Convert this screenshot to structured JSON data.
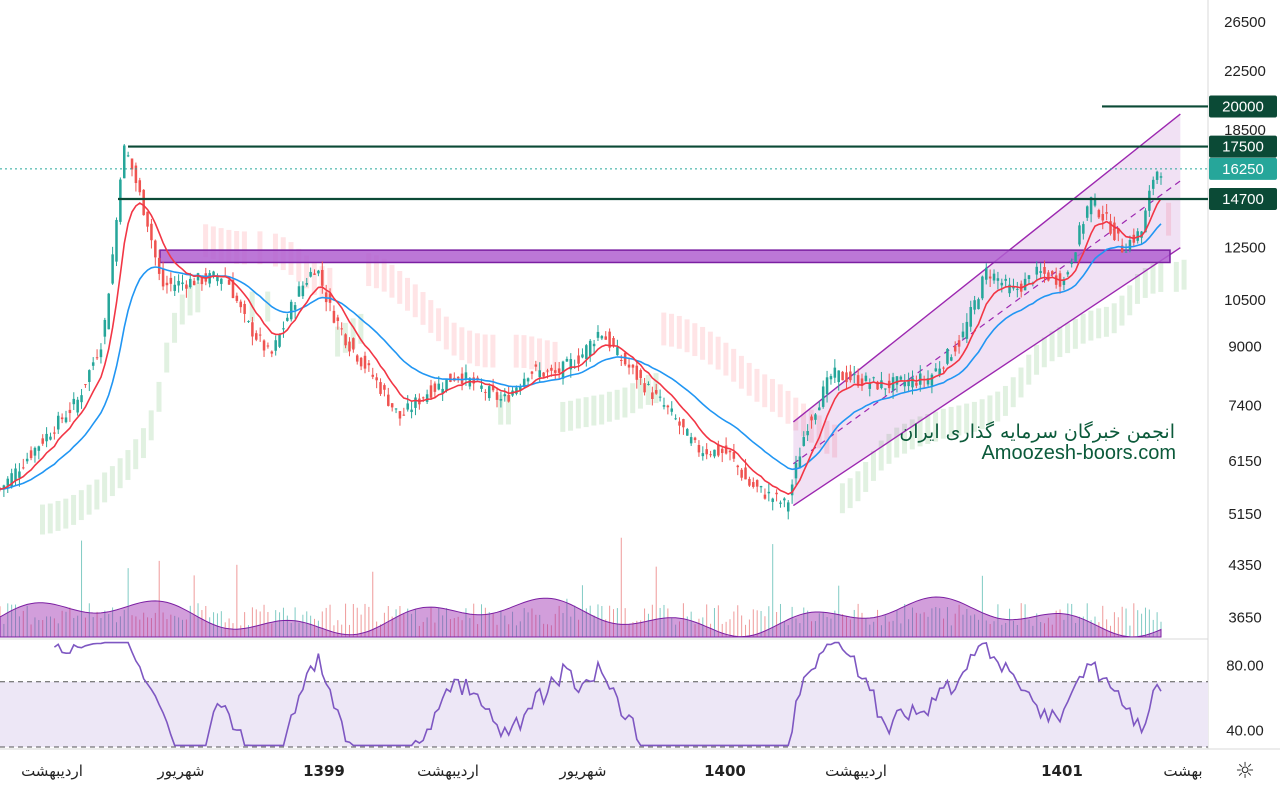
{
  "chart_data": {
    "type": "candlestick",
    "price_axis": {
      "scale": "log",
      "ylim": [
        3400,
        28500
      ],
      "ticks": [
        26500,
        22500,
        18500,
        14700,
        12500,
        10500,
        9000,
        7400,
        6150,
        5150,
        4350,
        3650
      ]
    },
    "x_axis_labels": [
      {
        "text": "اردیبهشت",
        "bold": false
      },
      {
        "text": "شهریور",
        "bold": false
      },
      {
        "text": "1399",
        "bold": true
      },
      {
        "text": "اردیبهشت",
        "bold": false
      },
      {
        "text": "شهریور",
        "bold": false
      },
      {
        "text": "1400",
        "bold": true
      },
      {
        "text": "اردیبهشت",
        "bold": false
      },
      {
        "text": "1401",
        "bold": true
      },
      {
        "text": "بهشت",
        "bold": false
      }
    ],
    "price_levels": [
      {
        "value": 20000,
        "label": "20000"
      },
      {
        "value": 17500,
        "label": "17500"
      },
      {
        "value": 14700,
        "label": "14700"
      }
    ],
    "current_price": {
      "value": 16250,
      "label": "16250"
    },
    "support_zone": [
      11900,
      12400
    ],
    "rising_channel": {
      "lower_line": [
        [
          0.615,
          5300
        ],
        [
          0.915,
          12500
        ]
      ],
      "upper_line": [
        [
          0.615,
          7000
        ],
        [
          0.915,
          19500
        ]
      ]
    },
    "close_path": [
      [
        0.0,
        5600
      ],
      [
        0.03,
        6500
      ],
      [
        0.06,
        7500
      ],
      [
        0.08,
        9300
      ],
      [
        0.09,
        13500
      ],
      [
        0.095,
        17500
      ],
      [
        0.1,
        16800
      ],
      [
        0.115,
        13500
      ],
      [
        0.125,
        11000
      ],
      [
        0.15,
        11200
      ],
      [
        0.175,
        11400
      ],
      [
        0.19,
        9800
      ],
      [
        0.21,
        8700
      ],
      [
        0.23,
        10700
      ],
      [
        0.245,
        11800
      ],
      [
        0.255,
        10300
      ],
      [
        0.27,
        9100
      ],
      [
        0.29,
        8100
      ],
      [
        0.31,
        7100
      ],
      [
        0.33,
        7700
      ],
      [
        0.355,
        8200
      ],
      [
        0.37,
        7900
      ],
      [
        0.39,
        7500
      ],
      [
        0.41,
        8300
      ],
      [
        0.43,
        8200
      ],
      [
        0.45,
        8700
      ],
      [
        0.465,
        9500
      ],
      [
        0.48,
        8700
      ],
      [
        0.5,
        7900
      ],
      [
        0.52,
        7200
      ],
      [
        0.54,
        6400
      ],
      [
        0.565,
        6300
      ],
      [
        0.58,
        5700
      ],
      [
        0.61,
        5300
      ],
      [
        0.625,
        6900
      ],
      [
        0.645,
        8200
      ],
      [
        0.66,
        8100
      ],
      [
        0.685,
        7900
      ],
      [
        0.72,
        8100
      ],
      [
        0.745,
        9200
      ],
      [
        0.765,
        11600
      ],
      [
        0.785,
        10800
      ],
      [
        0.805,
        11500
      ],
      [
        0.825,
        11200
      ],
      [
        0.845,
        14700
      ],
      [
        0.86,
        13500
      ],
      [
        0.87,
        12500
      ],
      [
        0.885,
        13200
      ],
      [
        0.895,
        16100
      ],
      [
        0.9,
        16250
      ]
    ],
    "rsi": {
      "ylim": [
        30,
        95
      ],
      "ticks": [
        80.0,
        40.0
      ],
      "overbought": 70,
      "oversold": 30
    }
  },
  "watermark": {
    "line1": "انجمن خبرگان سرمایه گذاری ایران",
    "line2": "Amoozesh-boors.com"
  },
  "colors": {
    "up": "#26a69a",
    "down": "#ef5350",
    "ema_fast": "#f23645",
    "ema_slow": "#2196f3",
    "level": "#0b4a36",
    "channel": "#9c27b0",
    "rsi_line": "#7e57c2"
  }
}
